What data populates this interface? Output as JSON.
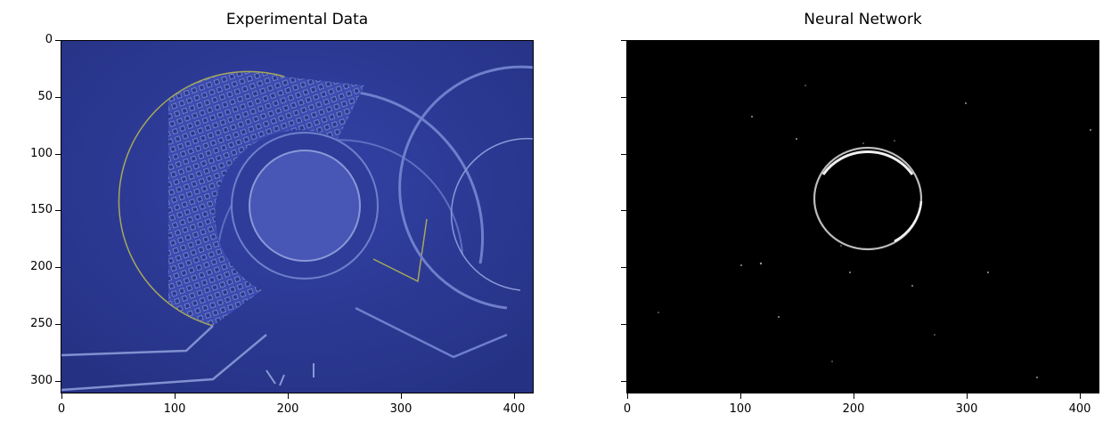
{
  "figure": {
    "panels": [
      {
        "id": "experimental",
        "title": "Experimental Data",
        "x_ticks": [
          "0",
          "100",
          "200",
          "300",
          "400"
        ],
        "y_ticks": [
          "0",
          "50",
          "100",
          "150",
          "200",
          "250",
          "300"
        ],
        "show_y_tick_labels": true,
        "colors": {
          "background": "#2c3a9a",
          "structure": "#7f8fd0",
          "edge_highlight": "#a6a85a"
        }
      },
      {
        "id": "neural-network",
        "title": "Neural Network",
        "x_ticks": [
          "0",
          "100",
          "200",
          "300",
          "400"
        ],
        "y_ticks": [
          "0",
          "50",
          "100",
          "150",
          "200",
          "250",
          "300"
        ],
        "show_y_tick_labels": false,
        "colors": {
          "background": "#000000",
          "ring": "#e8e8e8"
        }
      }
    ],
    "image_width": 418,
    "image_height": 312
  }
}
